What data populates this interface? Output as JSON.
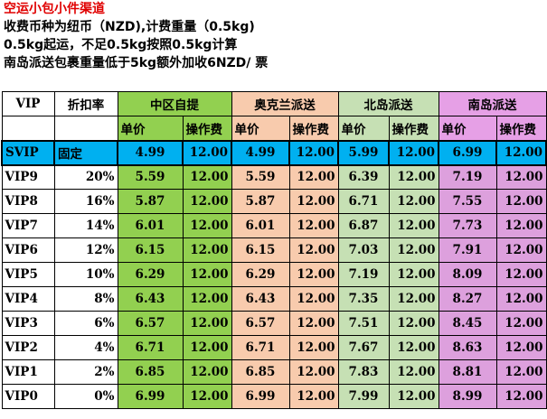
{
  "title": "空运小包小件渠道",
  "notes": [
    "收费币种为纽币（NZD),计费重量（0.5kg)",
    "0.5kg起运，不足0.5kg按照0.5kg计算",
    "南岛派送包裹重量低于5kg额外加收6NZD/ 票"
  ],
  "header": {
    "vip": "VIP",
    "discount": "折扣率",
    "groups": [
      "中区自提",
      "奥克兰派送",
      "北岛派送",
      "南岛派送"
    ],
    "unit_price": "单价",
    "fee": "操作费"
  },
  "rows": [
    {
      "vip": "SVIP",
      "discount": "固定",
      "prices": [
        "4.99",
        "4.99",
        "5.99",
        "6.99"
      ],
      "fee": "12.00"
    },
    {
      "vip": "VIP9",
      "discount": "20%",
      "prices": [
        "5.59",
        "5.59",
        "6.39",
        "7.19"
      ],
      "fee": "12.00"
    },
    {
      "vip": "VIP8",
      "discount": "16%",
      "prices": [
        "5.87",
        "5.87",
        "6.71",
        "7.55"
      ],
      "fee": "12.00"
    },
    {
      "vip": "VIP7",
      "discount": "14%",
      "prices": [
        "6.01",
        "6.01",
        "6.87",
        "7.73"
      ],
      "fee": "12.00"
    },
    {
      "vip": "VIP6",
      "discount": "12%",
      "prices": [
        "6.15",
        "6.15",
        "7.03",
        "7.91"
      ],
      "fee": "12.00"
    },
    {
      "vip": "VIP5",
      "discount": "10%",
      "prices": [
        "6.29",
        "6.29",
        "7.19",
        "8.09"
      ],
      "fee": "12.00"
    },
    {
      "vip": "VIP4",
      "discount": "8%",
      "prices": [
        "6.43",
        "6.43",
        "7.35",
        "8.27"
      ],
      "fee": "12.00"
    },
    {
      "vip": "VIP3",
      "discount": "6%",
      "prices": [
        "6.57",
        "6.57",
        "7.51",
        "8.45"
      ],
      "fee": "12.00"
    },
    {
      "vip": "VIP2",
      "discount": "4%",
      "prices": [
        "6.71",
        "6.71",
        "7.67",
        "8.63"
      ],
      "fee": "12.00"
    },
    {
      "vip": "VIP1",
      "discount": "2%",
      "prices": [
        "6.85",
        "6.85",
        "7.83",
        "8.81"
      ],
      "fee": "12.00"
    },
    {
      "vip": "VIP0",
      "discount": "0%",
      "prices": [
        "6.99",
        "6.99",
        "7.99",
        "8.99"
      ],
      "fee": "12.00"
    }
  ]
}
